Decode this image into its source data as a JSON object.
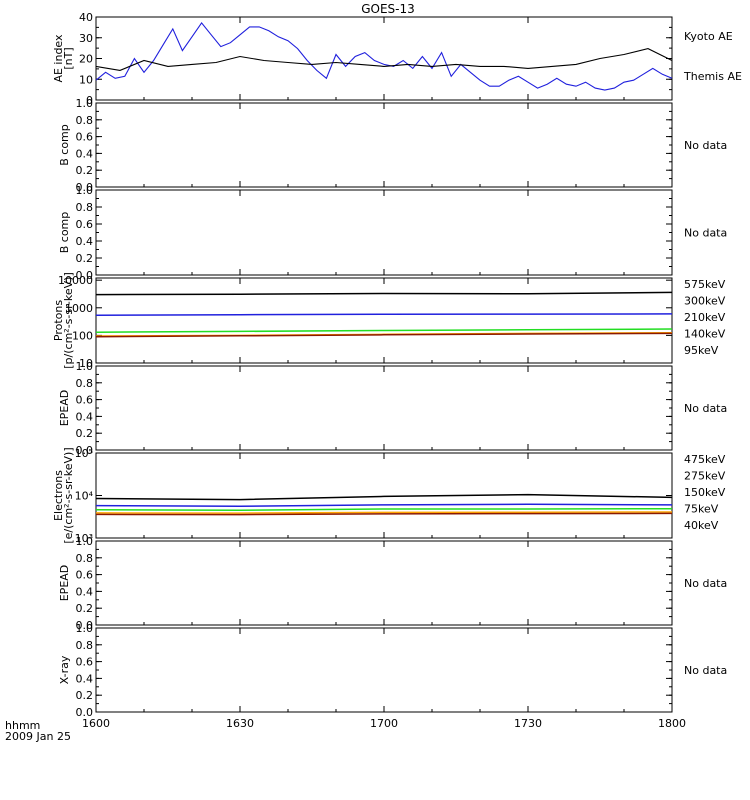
{
  "title": "GOES-13",
  "footer": {
    "axis_label": "hhmm",
    "date": "2009 Jan 25"
  },
  "x_ticks": [
    "1600",
    "1630",
    "1700",
    "1730",
    "1800"
  ],
  "colors": {
    "blue": "#2020dd",
    "black": "#000000",
    "green": "#22dd22",
    "orange": "#ffa500",
    "darkred": "#8b1a00"
  },
  "panels": [
    {
      "key": "ae",
      "ylabel": [
        "AE index",
        "[nT]"
      ],
      "ticks": [
        "0",
        "10",
        "20",
        "30",
        "40"
      ],
      "ylim": [
        0,
        42
      ],
      "legend": [
        {
          "text": "Kyoto AE",
          "color": "#2020dd"
        },
        {
          "text": "Themis AE",
          "color": "#000000"
        }
      ]
    },
    {
      "key": "bcomp1",
      "ylabel": [
        "B comp"
      ],
      "ticks": [
        "0.0",
        "0.2",
        "0.4",
        "0.6",
        "0.8",
        "1.0"
      ],
      "ylim": [
        0,
        1
      ],
      "nodata": "No data"
    },
    {
      "key": "bcomp2",
      "ylabel": [
        "B comp"
      ],
      "ticks": [
        "0.0",
        "0.2",
        "0.4",
        "0.6",
        "0.8",
        "1.0"
      ],
      "ylim": [
        0,
        1
      ],
      "nodata": "No data"
    },
    {
      "key": "protons",
      "ylabel": [
        "Protons",
        "[p/(cm²-s-sr-keV)]"
      ],
      "ticks": [
        "10",
        "100",
        "1000",
        "10000"
      ],
      "log": true,
      "ylim": [
        10,
        12000
      ],
      "legend": [
        {
          "text": "575keV",
          "color": "#8b1a00"
        },
        {
          "text": "300keV",
          "color": "#ffa500"
        },
        {
          "text": "210keV",
          "color": "#22dd22"
        },
        {
          "text": "140keV",
          "color": "#2020dd"
        },
        {
          "text": "95keV",
          "color": "#000000"
        }
      ]
    },
    {
      "key": "epead1",
      "ylabel": [
        "EPEAD"
      ],
      "ticks": [
        "0.0",
        "0.2",
        "0.4",
        "0.6",
        "0.8",
        "1.0"
      ],
      "ylim": [
        0,
        1
      ],
      "nodata": "No data"
    },
    {
      "key": "electrons",
      "ylabel": [
        "Electrons",
        "[e/(cm²-s-sr-keV)]"
      ],
      "ticks": [
        "10³",
        "10⁴",
        "10⁵"
      ],
      "log": true,
      "ylim": [
        1000,
        100000
      ],
      "legend": [
        {
          "text": "475keV",
          "color": "#8b1a00"
        },
        {
          "text": "275keV",
          "color": "#ffa500"
        },
        {
          "text": "150keV",
          "color": "#22dd22"
        },
        {
          "text": "75keV",
          "color": "#2020dd"
        },
        {
          "text": "40keV",
          "color": "#000000"
        }
      ]
    },
    {
      "key": "epead2",
      "ylabel": [
        "EPEAD"
      ],
      "ticks": [
        "0.0",
        "0.2",
        "0.4",
        "0.6",
        "0.8",
        "1.0"
      ],
      "ylim": [
        0,
        1
      ],
      "nodata": "No data"
    },
    {
      "key": "xray",
      "ylabel": [
        "X-ray"
      ],
      "ticks": [
        "0.0",
        "0.2",
        "0.4",
        "0.6",
        "0.8",
        "1.0"
      ],
      "ylim": [
        0,
        1
      ],
      "nodata": "No data"
    }
  ],
  "chart_data": {
    "type": "line",
    "title": "GOES-13",
    "x_unit": "hhmm",
    "xlim": [
      "1600",
      "1800"
    ],
    "series": [
      {
        "panel": "ae",
        "name": "Kyoto AE",
        "x": [
          "1600",
          "1602",
          "1604",
          "1606",
          "1608",
          "1610",
          "1612",
          "1614",
          "1616",
          "1618",
          "1620",
          "1622",
          "1624",
          "1626",
          "1628",
          "1630",
          "1632",
          "1634",
          "1636",
          "1638",
          "1640",
          "1642",
          "1644",
          "1646",
          "1648",
          "1650",
          "1652",
          "1654",
          "1656",
          "1658",
          "1700",
          "1702",
          "1704",
          "1706",
          "1708",
          "1710",
          "1712",
          "1714",
          "1716",
          "1718",
          "1720",
          "1722",
          "1724",
          "1726",
          "1728",
          "1730",
          "1732",
          "1734",
          "1736",
          "1738",
          "1740",
          "1742",
          "1744",
          "1746",
          "1748",
          "1750",
          "1752",
          "1754",
          "1756",
          "1758",
          "1800"
        ],
        "values": [
          10,
          14,
          11,
          12,
          21,
          14,
          20,
          28,
          36,
          25,
          32,
          39,
          33,
          27,
          29,
          33,
          37,
          37,
          35,
          32,
          30,
          26,
          20,
          15,
          11,
          23,
          17,
          22,
          24,
          20,
          18,
          17,
          20,
          16,
          22,
          16,
          24,
          12,
          18,
          14,
          10,
          7,
          7,
          10,
          12,
          9,
          6,
          8,
          11,
          8,
          7,
          9,
          6,
          5,
          6,
          9,
          10,
          13,
          16,
          13,
          11
        ]
      },
      {
        "panel": "ae",
        "name": "Themis AE",
        "x": [
          "1600",
          "1605",
          "1610",
          "1615",
          "1620",
          "1625",
          "1630",
          "1635",
          "1640",
          "1645",
          "1650",
          "1655",
          "1700",
          "1705",
          "1710",
          "1715",
          "1720",
          "1725",
          "1730",
          "1735",
          "1740",
          "1745",
          "1750",
          "1755",
          "1800"
        ],
        "values": [
          17,
          15,
          20,
          17,
          18,
          19,
          22,
          20,
          19,
          18,
          19,
          18,
          17,
          18,
          17,
          18,
          17,
          17,
          16,
          17,
          18,
          21,
          23,
          26,
          20
        ]
      },
      {
        "panel": "protons",
        "name": "95keV",
        "x": [
          "1600",
          "1630",
          "1700",
          "1730",
          "1800"
        ],
        "values": [
          3000,
          3100,
          3300,
          3200,
          3600
        ]
      },
      {
        "panel": "protons",
        "name": "140keV",
        "x": [
          "1600",
          "1630",
          "1700",
          "1730",
          "1800"
        ],
        "values": [
          540,
          560,
          580,
          590,
          600
        ]
      },
      {
        "panel": "protons",
        "name": "210keV",
        "x": [
          "1600",
          "1630",
          "1700",
          "1730",
          "1800"
        ],
        "values": [
          130,
          140,
          150,
          160,
          170
        ]
      },
      {
        "panel": "protons",
        "name": "300keV",
        "x": [
          "1600",
          "1630",
          "1700",
          "1730",
          "1800"
        ],
        "values": [
          95,
          100,
          110,
          118,
          125
        ]
      },
      {
        "panel": "protons",
        "name": "575keV",
        "x": [
          "1600",
          "1630",
          "1700",
          "1730",
          "1800"
        ],
        "values": [
          90,
          97,
          105,
          112,
          118
        ]
      },
      {
        "panel": "electrons",
        "name": "40keV",
        "x": [
          "1600",
          "1630",
          "1700",
          "1730",
          "1800"
        ],
        "values": [
          8500,
          8000,
          9500,
          10500,
          9000
        ]
      },
      {
        "panel": "electrons",
        "name": "75keV",
        "x": [
          "1600",
          "1630",
          "1700",
          "1730",
          "1800"
        ],
        "values": [
          5800,
          5600,
          6000,
          6200,
          6000
        ]
      },
      {
        "panel": "electrons",
        "name": "150keV",
        "x": [
          "1600",
          "1630",
          "1700",
          "1730",
          "1800"
        ],
        "values": [
          4600,
          4500,
          4800,
          4800,
          4900
        ]
      },
      {
        "panel": "electrons",
        "name": "275keV",
        "x": [
          "1600",
          "1630",
          "1700",
          "1730",
          "1800"
        ],
        "values": [
          3900,
          3850,
          4000,
          4050,
          4100
        ]
      },
      {
        "panel": "electrons",
        "name": "475keV",
        "x": [
          "1600",
          "1630",
          "1700",
          "1730",
          "1800"
        ],
        "values": [
          3600,
          3550,
          3700,
          3750,
          3800
        ]
      }
    ]
  }
}
